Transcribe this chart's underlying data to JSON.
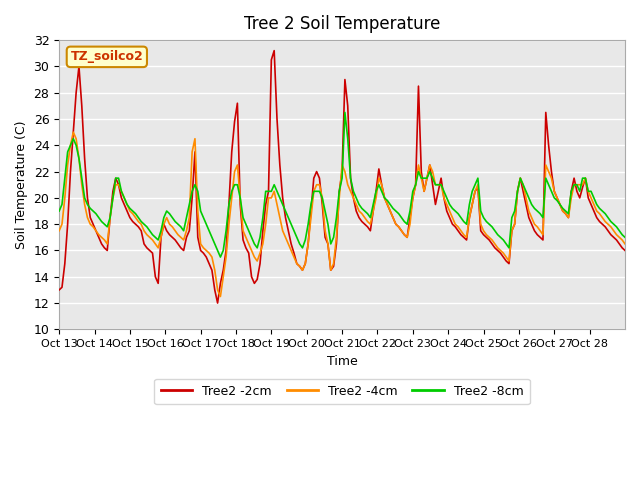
{
  "title": "Tree 2 Soil Temperature",
  "xlabel": "Time",
  "ylabel": "Soil Temperature (C)",
  "ylim": [
    10,
    32
  ],
  "annotation_text": "TZ_soilco2",
  "bg_color": "#E8E8E8",
  "grid_color": "#FFFFFF",
  "x_tick_labels": [
    "Oct 13",
    "Oct 14",
    "Oct 15",
    "Oct 16",
    "Oct 17",
    "Oct 18",
    "Oct 19",
    "Oct 20",
    "Oct 21",
    "Oct 22",
    "Oct 23",
    "Oct 24",
    "Oct 25",
    "Oct 26",
    "Oct 27",
    "Oct 28"
  ],
  "legend_labels": [
    "Tree2 -2cm",
    "Tree2 -4cm",
    "Tree2 -8cm"
  ],
  "legend_colors": [
    "#CC0000",
    "#FF8C00",
    "#00CC00"
  ],
  "red_data": [
    13.0,
    13.2,
    15.0,
    18.0,
    22.0,
    25.0,
    28.0,
    30.0,
    27.0,
    23.0,
    20.0,
    18.5,
    18.0,
    17.5,
    17.0,
    16.5,
    16.2,
    16.0,
    18.5,
    20.5,
    21.5,
    21.0,
    20.0,
    19.5,
    19.0,
    18.5,
    18.2,
    18.0,
    17.8,
    17.5,
    16.5,
    16.2,
    16.0,
    15.8,
    14.0,
    13.5,
    17.0,
    18.0,
    17.5,
    17.2,
    17.0,
    16.8,
    16.5,
    16.2,
    16.0,
    17.0,
    17.5,
    20.0,
    23.5,
    17.0,
    16.0,
    15.8,
    15.5,
    15.0,
    14.5,
    13.0,
    12.0,
    13.5,
    14.5,
    16.0,
    19.5,
    23.5,
    25.8,
    27.2,
    19.5,
    16.8,
    16.2,
    15.8,
    14.0,
    13.5,
    13.8,
    15.0,
    17.5,
    19.5,
    20.5,
    30.5,
    31.2,
    26.0,
    22.5,
    20.0,
    18.5,
    17.5,
    16.5,
    15.8,
    15.0,
    14.8,
    14.5,
    15.0,
    16.5,
    19.0,
    21.5,
    22.0,
    21.5,
    19.5,
    17.0,
    16.5,
    14.5,
    14.8,
    16.5,
    20.5,
    22.0,
    29.0,
    27.0,
    21.5,
    20.0,
    19.0,
    18.5,
    18.2,
    18.0,
    17.8,
    17.5,
    19.0,
    20.5,
    22.2,
    21.0,
    20.0,
    19.5,
    19.0,
    18.5,
    18.0,
    17.8,
    17.5,
    17.2,
    17.0,
    18.5,
    20.0,
    21.0,
    28.5,
    22.0,
    20.5,
    21.5,
    22.5,
    21.0,
    19.5,
    20.5,
    21.5,
    20.0,
    19.0,
    18.5,
    18.0,
    17.8,
    17.5,
    17.2,
    17.0,
    16.8,
    18.5,
    19.5,
    20.5,
    20.8,
    17.5,
    17.2,
    17.0,
    16.8,
    16.5,
    16.2,
    16.0,
    15.8,
    15.5,
    15.2,
    15.0,
    17.5,
    18.0,
    20.5,
    21.5,
    20.5,
    19.5,
    18.5,
    18.0,
    17.5,
    17.2,
    17.0,
    16.8,
    26.5,
    24.0,
    22.0,
    20.5,
    20.0,
    19.5,
    19.0,
    18.8,
    18.5,
    20.5,
    21.5,
    20.5,
    20.0,
    20.8,
    21.5,
    20.0,
    19.5,
    19.0,
    18.5,
    18.2,
    18.0,
    17.8,
    17.5,
    17.2,
    17.0,
    16.8,
    16.5,
    16.2,
    16.0
  ],
  "orange_data": [
    17.5,
    18.0,
    20.0,
    22.5,
    24.0,
    25.0,
    24.5,
    23.0,
    21.0,
    19.5,
    18.5,
    18.0,
    17.8,
    17.5,
    17.2,
    17.0,
    16.8,
    16.5,
    18.5,
    20.0,
    21.0,
    21.0,
    20.5,
    20.0,
    19.5,
    19.0,
    18.8,
    18.5,
    18.2,
    18.0,
    17.5,
    17.2,
    17.0,
    16.8,
    16.5,
    16.2,
    17.0,
    18.0,
    18.5,
    18.0,
    17.8,
    17.5,
    17.2,
    17.0,
    16.8,
    17.5,
    18.5,
    23.5,
    24.5,
    19.0,
    16.5,
    16.2,
    16.0,
    15.8,
    15.5,
    14.5,
    13.0,
    12.5,
    14.0,
    15.5,
    18.0,
    20.0,
    22.0,
    22.5,
    20.0,
    17.5,
    17.0,
    16.5,
    16.0,
    15.5,
    15.2,
    15.8,
    16.5,
    18.0,
    20.0,
    20.0,
    20.5,
    19.5,
    18.5,
    17.5,
    17.0,
    16.5,
    16.0,
    15.5,
    15.0,
    14.8,
    14.5,
    15.0,
    16.5,
    18.5,
    20.5,
    21.0,
    21.0,
    20.0,
    17.5,
    16.5,
    14.5,
    15.0,
    17.0,
    20.0,
    22.5,
    22.0,
    21.0,
    20.5,
    20.0,
    19.5,
    19.0,
    18.8,
    18.5,
    18.2,
    18.0,
    19.0,
    20.0,
    21.5,
    21.0,
    20.0,
    19.5,
    19.0,
    18.5,
    18.0,
    17.8,
    17.5,
    17.2,
    17.0,
    18.0,
    20.0,
    21.0,
    22.5,
    21.5,
    20.5,
    21.5,
    22.5,
    22.0,
    21.0,
    21.0,
    21.0,
    20.0,
    19.5,
    19.0,
    18.5,
    18.0,
    17.8,
    17.5,
    17.2,
    17.0,
    18.5,
    19.5,
    20.5,
    21.0,
    18.0,
    17.5,
    17.2,
    17.0,
    16.8,
    16.5,
    16.2,
    16.0,
    15.8,
    15.5,
    15.2,
    17.5,
    18.0,
    20.5,
    21.5,
    21.0,
    20.0,
    19.0,
    18.5,
    18.0,
    17.8,
    17.5,
    17.2,
    22.5,
    22.0,
    21.5,
    20.5,
    20.0,
    19.5,
    19.0,
    18.8,
    18.5,
    20.0,
    21.0,
    21.0,
    21.0,
    21.0,
    21.5,
    20.5,
    20.0,
    19.5,
    19.0,
    18.8,
    18.5,
    18.2,
    18.0,
    17.8,
    17.5,
    17.2,
    17.0,
    16.8,
    16.5
  ],
  "green_data": [
    19.0,
    19.5,
    21.5,
    23.5,
    24.0,
    24.5,
    24.0,
    23.0,
    21.5,
    20.0,
    19.5,
    19.2,
    19.0,
    18.8,
    18.5,
    18.2,
    18.0,
    17.8,
    18.5,
    20.0,
    21.5,
    21.5,
    20.5,
    20.0,
    19.5,
    19.2,
    19.0,
    18.8,
    18.5,
    18.2,
    18.0,
    17.8,
    17.5,
    17.2,
    17.0,
    16.8,
    17.5,
    18.5,
    19.0,
    18.8,
    18.5,
    18.2,
    18.0,
    17.8,
    17.5,
    18.5,
    19.5,
    20.5,
    21.0,
    20.5,
    19.0,
    18.5,
    18.0,
    17.5,
    17.0,
    16.5,
    16.0,
    15.5,
    16.0,
    17.5,
    19.5,
    20.5,
    21.0,
    21.0,
    20.0,
    18.5,
    18.0,
    17.5,
    17.0,
    16.5,
    16.2,
    17.0,
    18.5,
    20.5,
    20.5,
    20.5,
    21.0,
    20.5,
    20.0,
    19.5,
    19.0,
    18.5,
    18.0,
    17.5,
    17.0,
    16.5,
    16.2,
    16.8,
    18.0,
    19.5,
    20.5,
    20.5,
    20.5,
    20.0,
    19.0,
    18.0,
    16.5,
    17.0,
    18.5,
    20.5,
    21.5,
    26.5,
    24.5,
    21.5,
    20.5,
    20.0,
    19.5,
    19.2,
    19.0,
    18.8,
    18.5,
    19.5,
    20.5,
    21.0,
    20.5,
    20.0,
    19.8,
    19.5,
    19.2,
    19.0,
    18.8,
    18.5,
    18.2,
    18.0,
    19.0,
    20.5,
    21.0,
    22.0,
    21.5,
    21.5,
    21.5,
    22.0,
    21.5,
    21.0,
    21.0,
    21.0,
    20.5,
    20.0,
    19.5,
    19.2,
    19.0,
    18.8,
    18.5,
    18.2,
    18.0,
    19.5,
    20.5,
    21.0,
    21.5,
    19.0,
    18.5,
    18.2,
    18.0,
    17.8,
    17.5,
    17.2,
    17.0,
    16.8,
    16.5,
    16.2,
    18.5,
    19.0,
    20.5,
    21.5,
    21.0,
    20.5,
    20.0,
    19.5,
    19.2,
    19.0,
    18.8,
    18.5,
    21.5,
    21.0,
    20.5,
    20.0,
    19.8,
    19.5,
    19.2,
    19.0,
    18.8,
    20.5,
    21.0,
    21.0,
    20.5,
    21.5,
    21.5,
    20.5,
    20.5,
    20.0,
    19.5,
    19.2,
    19.0,
    18.8,
    18.5,
    18.2,
    18.0,
    17.8,
    17.5,
    17.2,
    17.0
  ]
}
